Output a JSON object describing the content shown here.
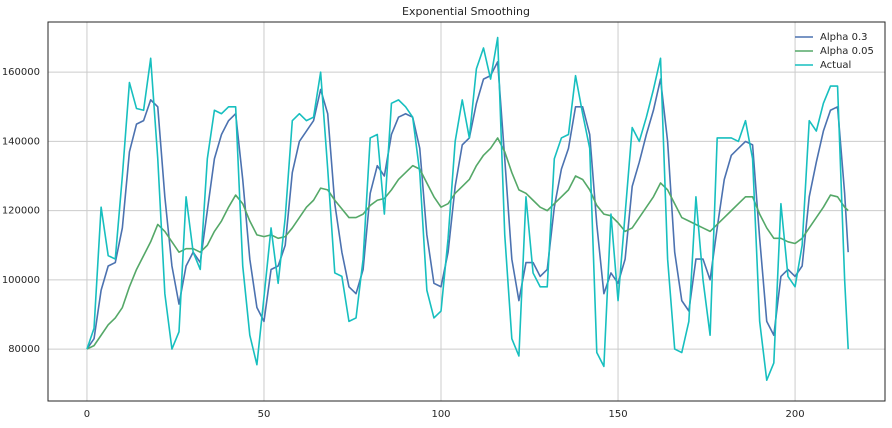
{
  "chart_data": {
    "type": "line",
    "title": "Exponential Smoothing",
    "x": [
      0,
      2,
      4,
      6,
      8,
      10,
      12,
      14,
      16,
      18,
      20,
      22,
      24,
      26,
      28,
      30,
      32,
      34,
      36,
      38,
      40,
      42,
      44,
      46,
      48,
      50,
      52,
      54,
      56,
      58,
      60,
      62,
      64,
      66,
      68,
      70,
      72,
      74,
      76,
      78,
      80,
      82,
      84,
      86,
      88,
      90,
      92,
      94,
      96,
      98,
      100,
      102,
      104,
      106,
      108,
      110,
      112,
      114,
      116,
      118,
      120,
      122,
      124,
      126,
      128,
      130,
      132,
      134,
      136,
      138,
      140,
      142,
      144,
      146,
      148,
      150,
      152,
      154,
      156,
      158,
      160,
      162,
      164,
      166,
      168,
      170,
      172,
      174,
      176,
      178,
      180,
      182,
      184,
      186,
      188,
      190,
      192,
      194,
      196,
      198,
      200,
      202,
      204,
      206,
      208,
      210,
      212,
      214,
      215
    ],
    "series": [
      {
        "name": "Alpha 0.3",
        "color": "#4c72b0",
        "values": [
          80000,
          83000,
          97000,
          104000,
          105000,
          115000,
          137000,
          145000,
          146000,
          152000,
          150000,
          124000,
          104000,
          93000,
          104000,
          108000,
          105000,
          120000,
          135000,
          142000,
          146000,
          148000,
          129000,
          106000,
          92000,
          88000,
          103000,
          104000,
          110000,
          131000,
          140000,
          143000,
          146000,
          155000,
          148000,
          122000,
          108000,
          98000,
          96000,
          103000,
          125000,
          133000,
          130000,
          142000,
          147000,
          148000,
          147000,
          138000,
          113000,
          99000,
          98000,
          108000,
          127000,
          139000,
          141000,
          151000,
          158000,
          159000,
          163000,
          135000,
          106000,
          94000,
          105000,
          105000,
          101000,
          103000,
          121000,
          132000,
          138000,
          150000,
          150000,
          142000,
          116000,
          96000,
          102000,
          99000,
          106000,
          127000,
          134000,
          142000,
          149000,
          158000,
          140000,
          108000,
          94000,
          91000,
          106000,
          106000,
          100000,
          115000,
          129000,
          136000,
          138000,
          140000,
          139000,
          112000,
          88000,
          84000,
          101000,
          103000,
          101000,
          104000,
          124000,
          134000,
          143000,
          149000,
          150000,
          125000,
          108000
        ]
      },
      {
        "name": "Alpha 0.05",
        "color": "#55a868",
        "values": [
          80000,
          81000,
          84000,
          87000,
          89000,
          92000,
          98000,
          103000,
          107000,
          111000,
          116000,
          114000,
          111000,
          108000,
          109000,
          109000,
          108000,
          110000,
          114000,
          117000,
          121000,
          124500,
          122000,
          117000,
          113000,
          112500,
          113000,
          112000,
          112500,
          115000,
          118000,
          121000,
          123000,
          126500,
          126000,
          123000,
          120500,
          118000,
          118000,
          119000,
          121500,
          123000,
          123500,
          126000,
          129000,
          131000,
          133000,
          132000,
          128000,
          124000,
          121000,
          122000,
          125000,
          127000,
          129000,
          133000,
          136000,
          138000,
          141000,
          137000,
          131000,
          126000,
          125000,
          123000,
          121000,
          120000,
          122000,
          124000,
          126000,
          130000,
          129000,
          126000,
          121500,
          119000,
          118500,
          116500,
          114000,
          115000,
          118000,
          121000,
          124000,
          128000,
          126000,
          122000,
          118000,
          117000,
          116000,
          115000,
          114000,
          116000,
          118000,
          120000,
          122000,
          124000,
          124000,
          119000,
          115000,
          112000,
          112000,
          111000,
          110500,
          112000,
          115000,
          118000,
          121000,
          124500,
          124000,
          121000,
          120000
        ]
      },
      {
        "name": "Actual",
        "color": "#17bfbf",
        "values": [
          80000,
          86000,
          121000,
          107000,
          106000,
          130000,
          157000,
          149500,
          149000,
          164000,
          135000,
          96000,
          80000,
          85000,
          124000,
          108000,
          103000,
          135000,
          149000,
          148000,
          150000,
          150000,
          104000,
          84000,
          75500,
          95000,
          115000,
          99000,
          118000,
          146000,
          148000,
          146000,
          147000,
          160000,
          132000,
          102000,
          101000,
          88000,
          89000,
          106000,
          141000,
          142000,
          119000,
          151000,
          152000,
          150000,
          147000,
          131000,
          97000,
          89000,
          91000,
          112000,
          140000,
          152000,
          141000,
          161000,
          167000,
          158000,
          170000,
          113000,
          83000,
          78000,
          124000,
          102000,
          98000,
          98000,
          135000,
          141000,
          142000,
          159000,
          148000,
          138000,
          79000,
          75000,
          119000,
          94000,
          119000,
          144000,
          140000,
          147000,
          155000,
          164000,
          106000,
          80000,
          79000,
          88000,
          124000,
          100000,
          84000,
          141000,
          141000,
          141000,
          140000,
          146000,
          135000,
          88000,
          71000,
          76000,
          122000,
          101000,
          98000,
          110000,
          146000,
          143000,
          151000,
          156000,
          156000,
          100000,
          80000
        ]
      }
    ],
    "xlim": [
      -11,
      225.4
    ],
    "ylim": [
      65000,
      174500
    ],
    "xticks": [
      0,
      50,
      100,
      150,
      200
    ],
    "yticks": [
      80000,
      100000,
      120000,
      140000,
      160000
    ],
    "grid": true,
    "legend": "upper right"
  }
}
